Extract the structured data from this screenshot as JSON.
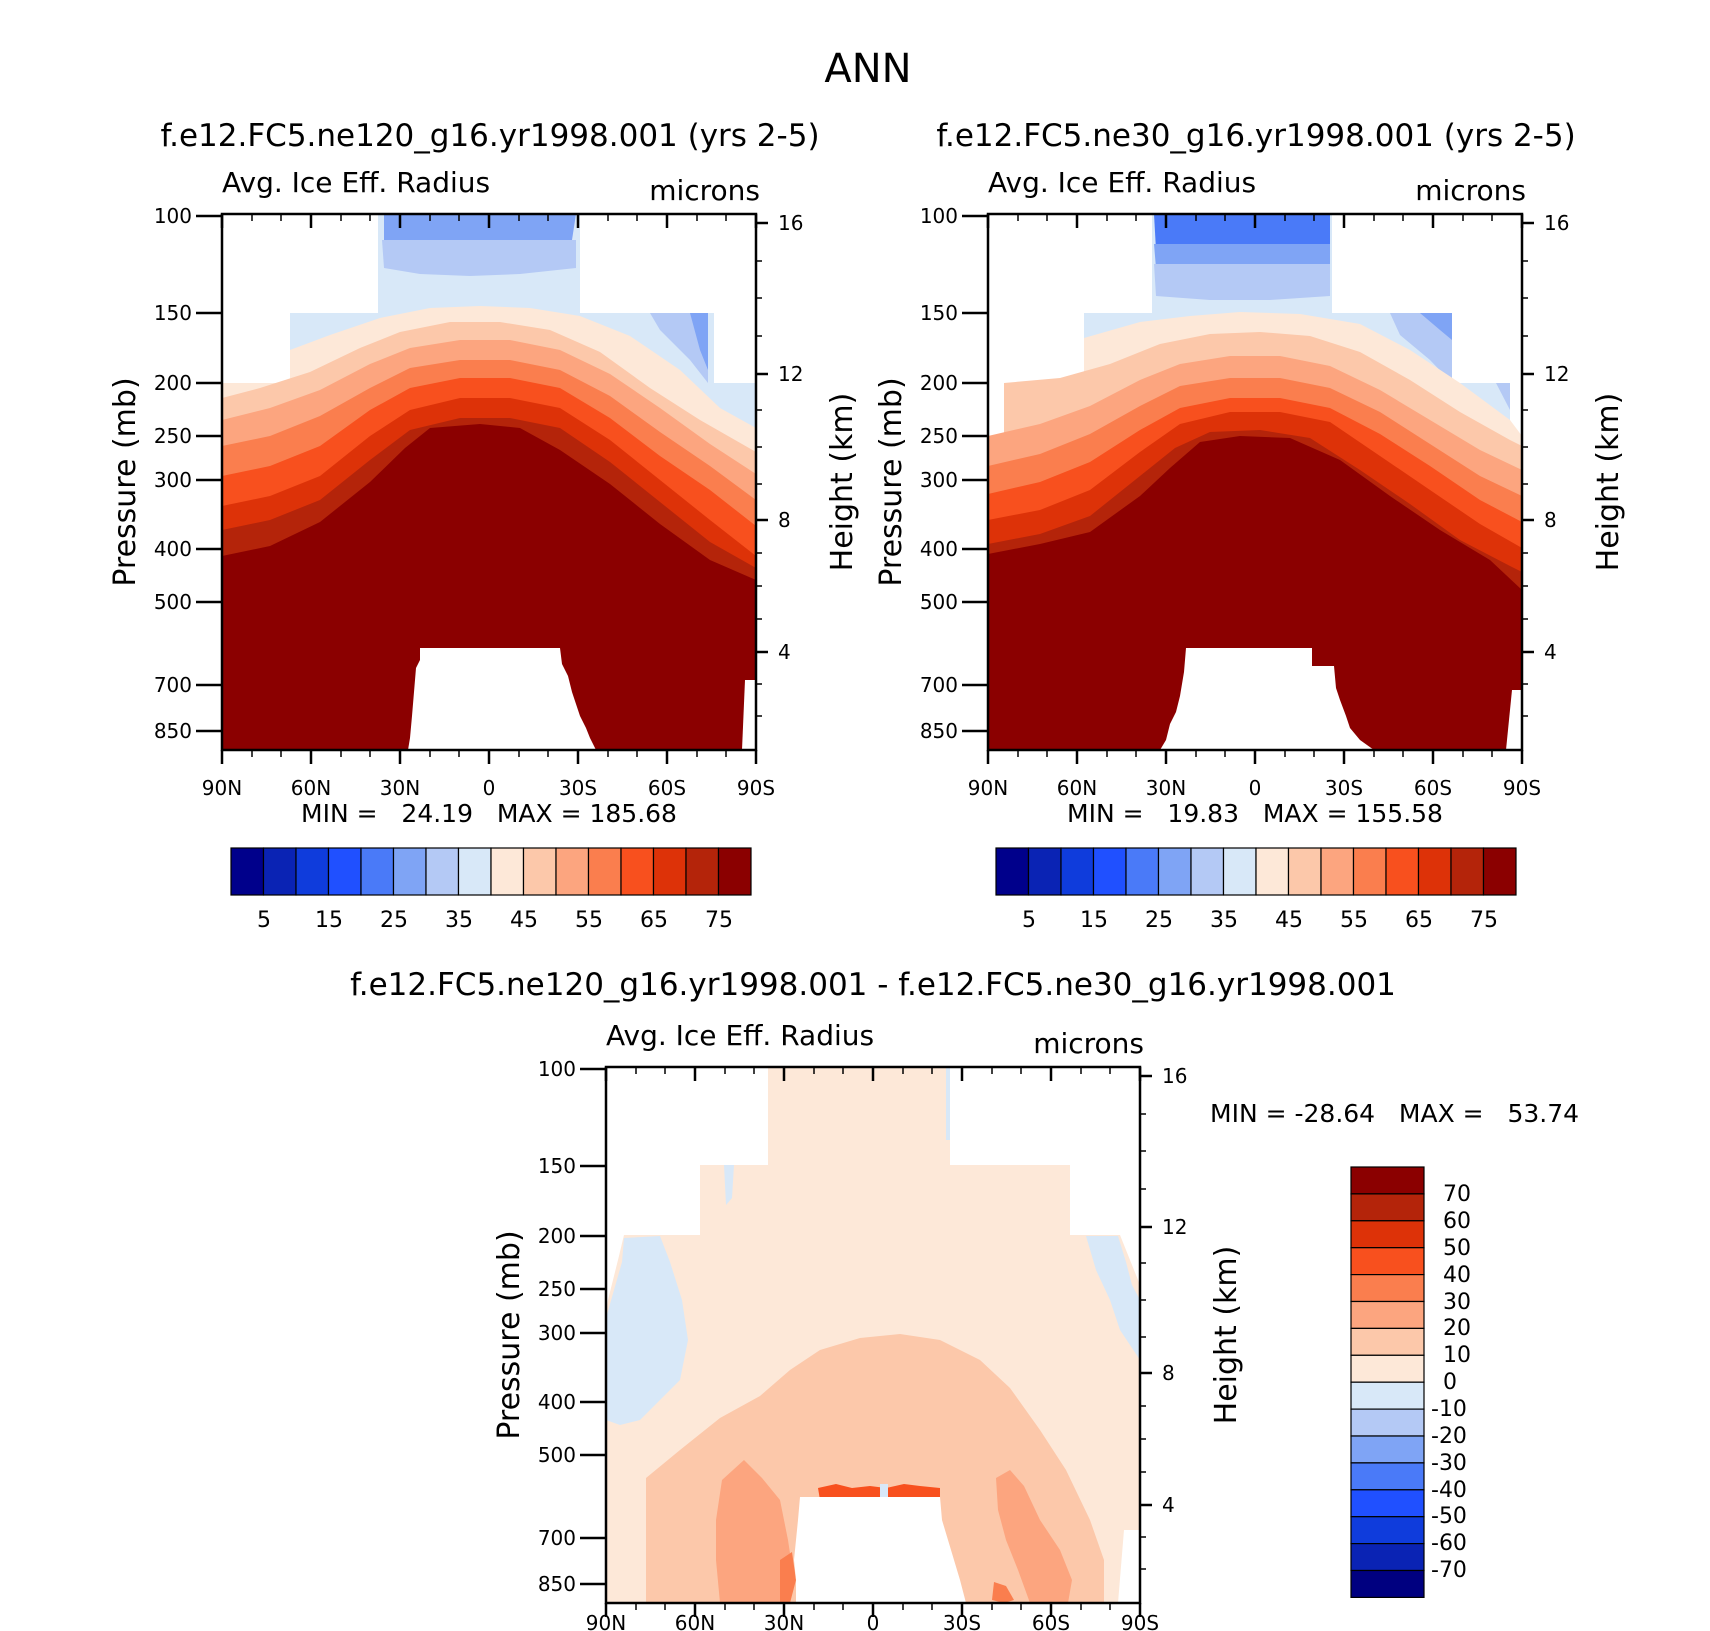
{
  "figure_title": "ANN",
  "colors": {
    "abs_scale": [
      "#00008b",
      "#0a23b4",
      "#0f3cdc",
      "#2050ff",
      "#4a7af8",
      "#7fa4f5",
      "#b4c9f5",
      "#d8e8f8",
      "#fde8d8",
      "#fcc8aa",
      "#fca57f",
      "#fa7e4e",
      "#f8501e",
      "#dd3208",
      "#b4240a",
      "#8b0000"
    ],
    "diff_scale": [
      "#000080",
      "#0a23b4",
      "#0f3cdc",
      "#2050ff",
      "#4a7af8",
      "#7fa4f5",
      "#b4c9f5",
      "#d8e8f8",
      "#fde8d8",
      "#fcc8aa",
      "#fca57f",
      "#fa7e4e",
      "#f8501e",
      "#dd3208",
      "#b4240a",
      "#8b0000"
    ]
  },
  "chart_data": [
    {
      "type": "heatmap",
      "case_title": "f.e12.FC5.ne120_g16.yr1998.001 (yrs 2-5)",
      "variable": "Avg. Ice Eff. Radius",
      "units": "microns",
      "ylabel_left": "Pressure (mb)",
      "ylabel_right": "Height (km)",
      "pressure_ticks": [
        "100",
        "150",
        "200",
        "250",
        "300",
        "400",
        "500",
        "700",
        "850"
      ],
      "height_ticks": [
        "16",
        "12",
        "8",
        "4"
      ],
      "lat_ticks": [
        "90N",
        "60N",
        "30N",
        "0",
        "30S",
        "60S",
        "90S"
      ],
      "stats": "MIN =   24.19   MAX = 185.68",
      "min": 24.19,
      "max": 185.68,
      "colorbar_labels": [
        "5",
        "15",
        "25",
        "35",
        "45",
        "55",
        "65",
        "75"
      ]
    },
    {
      "type": "heatmap",
      "case_title": "f.e12.FC5.ne30_g16.yr1998.001 (yrs 2-5)",
      "variable": "Avg. Ice Eff. Radius",
      "units": "microns",
      "ylabel_left": "Pressure (mb)",
      "ylabel_right": "Height (km)",
      "pressure_ticks": [
        "100",
        "150",
        "200",
        "250",
        "300",
        "400",
        "500",
        "700",
        "850"
      ],
      "height_ticks": [
        "16",
        "12",
        "8",
        "4"
      ],
      "lat_ticks": [
        "90N",
        "60N",
        "30N",
        "0",
        "30S",
        "60S",
        "90S"
      ],
      "stats": "MIN =   19.83   MAX = 155.58",
      "min": 19.83,
      "max": 155.58,
      "colorbar_labels": [
        "5",
        "15",
        "25",
        "35",
        "45",
        "55",
        "65",
        "75"
      ]
    },
    {
      "type": "heatmap",
      "case_title": "f.e12.FC5.ne120_g16.yr1998.001 - f.e12.FC5.ne30_g16.yr1998.001",
      "variable": "Avg. Ice Eff. Radius",
      "units": "microns",
      "ylabel_left": "Pressure (mb)",
      "ylabel_right": "Height (km)",
      "pressure_ticks": [
        "100",
        "150",
        "200",
        "250",
        "300",
        "400",
        "500",
        "700",
        "850"
      ],
      "height_ticks": [
        "16",
        "12",
        "8",
        "4"
      ],
      "lat_ticks": [
        "90N",
        "60N",
        "30N",
        "0",
        "30S",
        "60S",
        "90S"
      ],
      "stats": "MIN = -28.64   MAX =   53.74",
      "min": -28.64,
      "max": 53.74,
      "colorbar_labels": [
        "70",
        "60",
        "50",
        "40",
        "30",
        "20",
        "10",
        "0",
        "-10",
        "-20",
        "-30",
        "-40",
        "-50",
        "-60",
        "-70"
      ]
    }
  ]
}
